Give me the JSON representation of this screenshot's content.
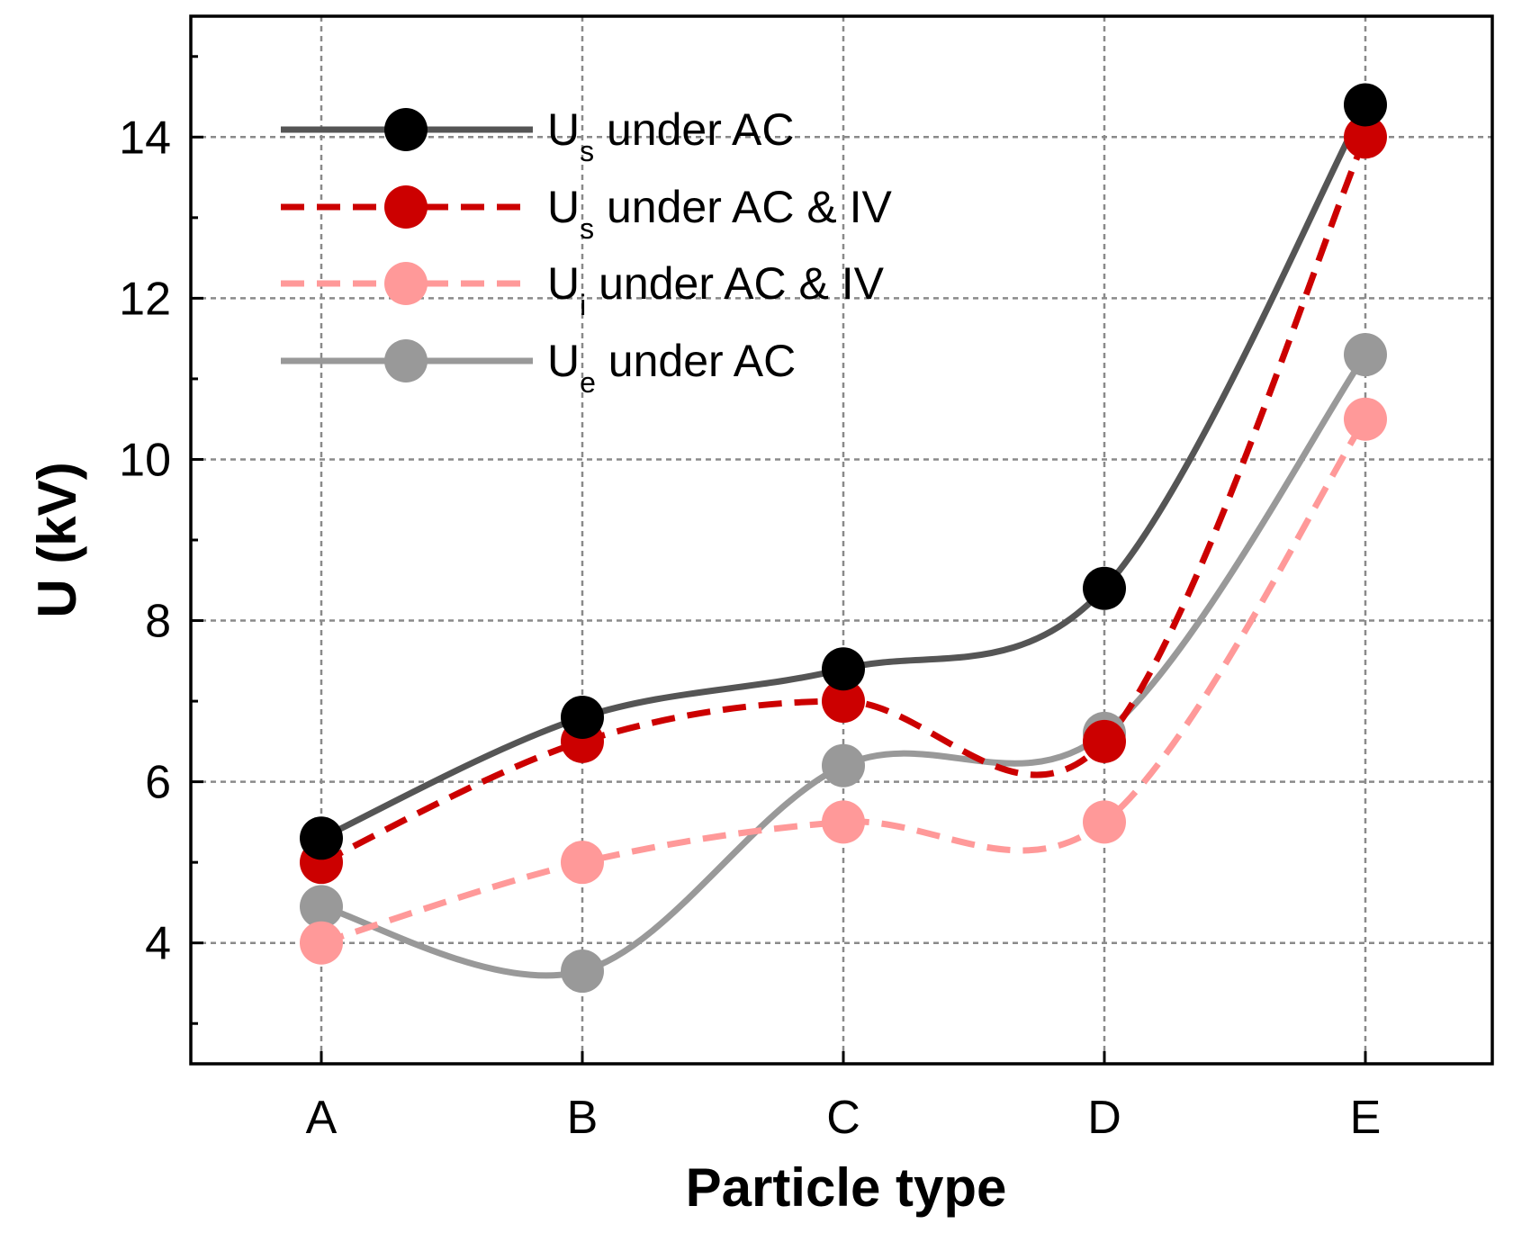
{
  "chart_data": {
    "type": "line",
    "title": "",
    "xlabel": "Particle type",
    "ylabel": "U (kV)",
    "categories": [
      "A",
      "B",
      "C",
      "D",
      "E"
    ],
    "ylim": [
      2.5,
      15.5
    ],
    "yticks": [
      4,
      6,
      8,
      10,
      12,
      14
    ],
    "grid": true,
    "legend_position": "top-left",
    "series": [
      {
        "name": "Us under AC",
        "symbol": "U",
        "subscript": "s",
        "suffix": " under AC",
        "values": [
          5.3,
          6.8,
          7.4,
          8.4,
          14.4
        ],
        "color": "#000000",
        "line_color": "#555555",
        "dashed": false
      },
      {
        "name": "Us under AC & IV",
        "symbol": "U",
        "subscript": "s",
        "suffix": " under AC & IV",
        "values": [
          5.0,
          6.5,
          7.0,
          6.5,
          14.0
        ],
        "color": "#cc0000",
        "line_color": "#cc0000",
        "dashed": true
      },
      {
        "name": "Ui under AC & IV",
        "symbol": "U",
        "subscript": "i",
        "suffix": " under AC & IV",
        "values": [
          4.0,
          5.0,
          5.5,
          5.5,
          10.5
        ],
        "color": "#ff9999",
        "line_color": "#ff9999",
        "dashed": true
      },
      {
        "name": "Ue under AC",
        "symbol": "U",
        "subscript": "e",
        "suffix": " under AC",
        "values": [
          4.45,
          3.65,
          6.2,
          6.6,
          11.3
        ],
        "color": "#999999",
        "line_color": "#999999",
        "dashed": false
      }
    ]
  }
}
